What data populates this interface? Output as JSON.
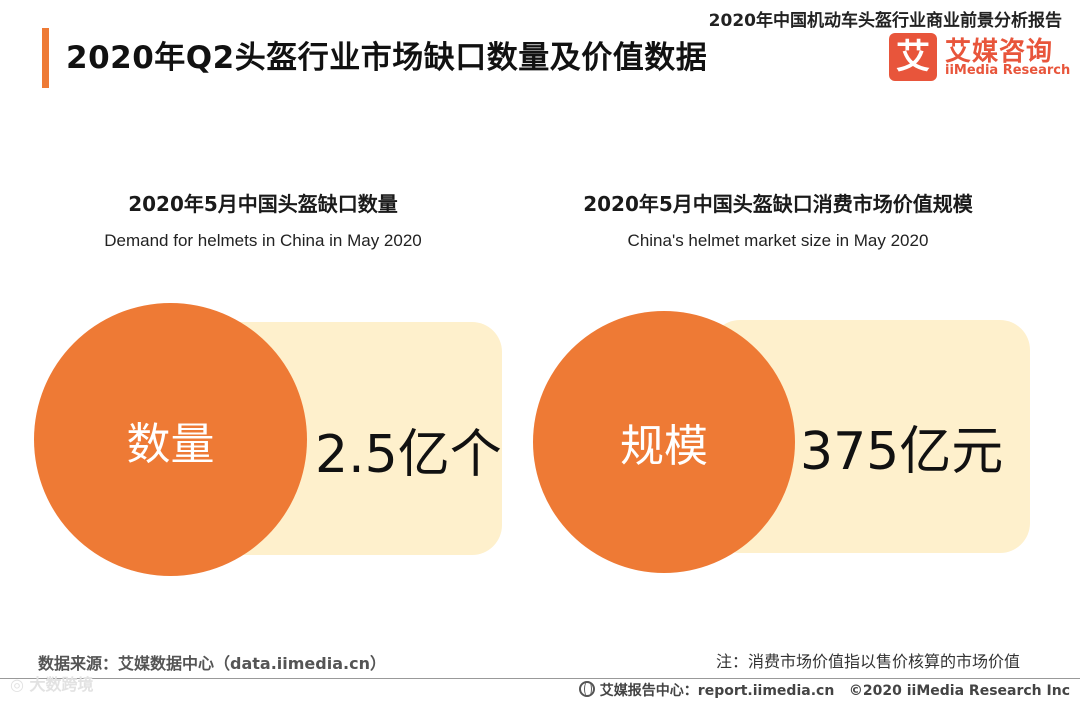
{
  "header": {
    "report_name": "2020年中国机动车头盔行业商业前景分析报告",
    "title": "2020年Q2头盔行业市场缺口数量及价值数据",
    "logo": {
      "mark": "艾",
      "name_cn": "艾媒咨询",
      "name_en": "iiMedia Research"
    }
  },
  "colors": {
    "accent": "#ee7a35",
    "card": "#fef0cc",
    "logo": "#e8553b"
  },
  "chart_data": [
    {
      "type": "table",
      "title": "2020年5月中国头盔缺口数量",
      "subtitle": "Demand for helmets in China in May 2020",
      "label": "数量",
      "value": 2.5,
      "unit": "亿个",
      "display": "2.5亿个"
    },
    {
      "type": "table",
      "title": "2020年5月中国头盔缺口消费市场价值规模",
      "subtitle": "China's helmet market size in May 2020",
      "label": "规模",
      "value": 375,
      "unit": "亿元",
      "display": "375亿元"
    }
  ],
  "footer": {
    "source": "数据来源：艾媒数据中心（data.iimedia.cn）",
    "note": "注：消费市场价值指以售价核算的市场价值",
    "site": "艾媒报告中心：report.iimedia.cn",
    "copyright": "©2020  iiMedia Research  Inc",
    "watermark_icon": "circle-logo-icon",
    "watermark": "大数跨境"
  }
}
